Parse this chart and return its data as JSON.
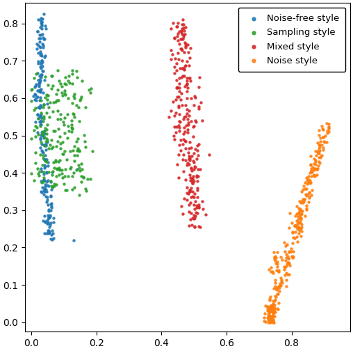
{
  "title": "",
  "xlim": [
    -0.02,
    0.98
  ],
  "ylim": [
    -0.025,
    0.855
  ],
  "xticks": [
    0.0,
    0.2,
    0.4,
    0.6,
    0.8
  ],
  "yticks": [
    0.0,
    0.1,
    0.2,
    0.3,
    0.4,
    0.5,
    0.6,
    0.7,
    0.8
  ],
  "legend_labels": [
    "Noise-free style",
    "Noise style",
    "Mixed style",
    "Sampling style"
  ],
  "colors": {
    "blue": "#1f77b4",
    "orange": "#ff7f0e",
    "red": "#d62728",
    "green": "#2ca02c"
  },
  "marker_size": 10,
  "alpha": 0.9,
  "figsize": [
    5.08,
    5.04
  ],
  "dpi": 100
}
